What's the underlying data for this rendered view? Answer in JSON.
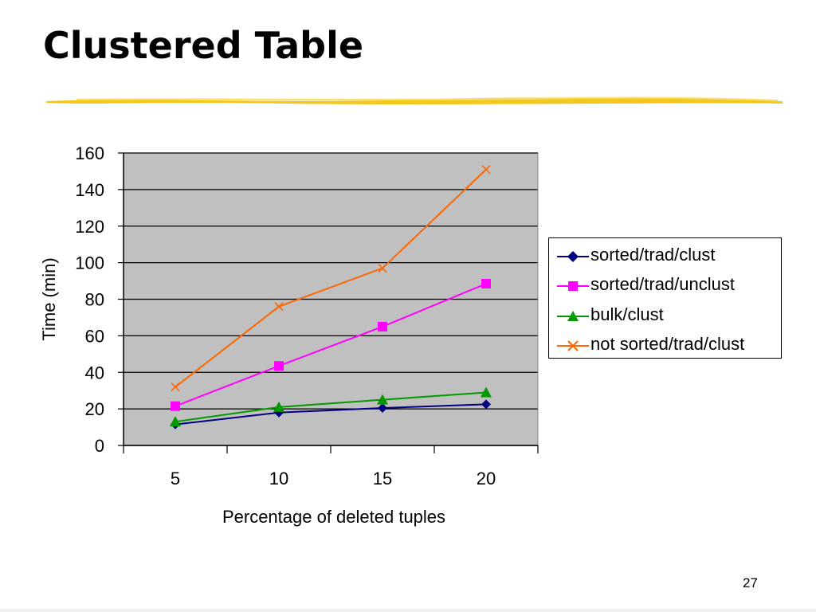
{
  "slide": {
    "title": "Clustered Table",
    "page_number": "27"
  },
  "colors": {
    "plot_background": "#c0c0c0",
    "title_rule": "#f2c81e"
  },
  "chart_data": {
    "type": "line",
    "title": "",
    "xlabel": "Percentage of deleted tuples",
    "ylabel": "Time (min)",
    "categories": [
      "5",
      "10",
      "15",
      "20"
    ],
    "ylim": [
      0,
      160
    ],
    "yticks": [
      0,
      20,
      40,
      60,
      80,
      100,
      120,
      140,
      160
    ],
    "grid": true,
    "legend_position": "right",
    "series": [
      {
        "name": "sorted/trad/clust",
        "values": [
          11.5,
          18,
          20.5,
          22.5
        ],
        "color": "#000080",
        "marker": "diamond"
      },
      {
        "name": "sorted/trad/unclust",
        "values": [
          21.5,
          43.5,
          65,
          88.5
        ],
        "color": "#ff00ff",
        "marker": "square"
      },
      {
        "name": "bulk/clust",
        "values": [
          13,
          21,
          25,
          29
        ],
        "color": "#009900",
        "marker": "triangle"
      },
      {
        "name": "not sorted/trad/clust",
        "values": [
          32,
          76,
          97,
          151
        ],
        "color": "#ff6600",
        "marker": "x"
      }
    ]
  }
}
